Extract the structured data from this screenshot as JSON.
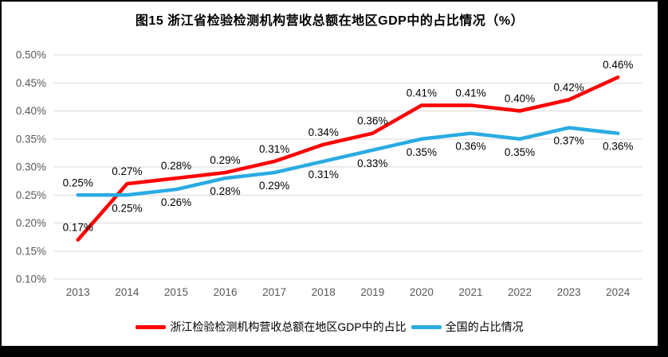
{
  "chart_data": {
    "type": "line",
    "title": "图15  浙江省检验检测机构营收总额在地区GDP中的占比情况（%）",
    "categories": [
      "2013",
      "2014",
      "2015",
      "2016",
      "2017",
      "2018",
      "2019",
      "2020",
      "2021",
      "2022",
      "2023",
      "2024"
    ],
    "series": [
      {
        "name": "浙江检验检测机构营收总额在地区GDP中的占比",
        "color": "#FF0000",
        "values": [
          0.17,
          0.27,
          0.28,
          0.29,
          0.31,
          0.34,
          0.36,
          0.41,
          0.41,
          0.4,
          0.42,
          0.46
        ],
        "labels": [
          "0.17%",
          "0.27%",
          "0.28%",
          "0.29%",
          "0.31%",
          "0.34%",
          "0.36%",
          "0.41%",
          "0.41%",
          "0.40%",
          "0.42%",
          "0.46%"
        ],
        "label_position": "above",
        "label_position_overrides": {}
      },
      {
        "name": "全国的占比情况",
        "color": "#29ABE2",
        "values": [
          0.25,
          0.25,
          0.26,
          0.28,
          0.29,
          0.31,
          0.33,
          0.35,
          0.36,
          0.35,
          0.37,
          0.36
        ],
        "labels": [
          "0.25%",
          "0.25%",
          "0.26%",
          "0.28%",
          "0.29%",
          "0.31%",
          "0.33%",
          "0.35%",
          "0.36%",
          "0.35%",
          "0.37%",
          "0.36%"
        ],
        "label_position": "below",
        "label_position_overrides": {
          "0": "above"
        }
      }
    ],
    "ylim": [
      0.1,
      0.5
    ],
    "ytick_step": 0.05,
    "ytick_labels": [
      "0.10%",
      "0.15%",
      "0.20%",
      "0.25%",
      "0.30%",
      "0.35%",
      "0.40%",
      "0.45%",
      "0.50%"
    ],
    "grid": true,
    "legend_position": "bottom",
    "colors": {
      "gridline": "#D9D9D9",
      "axis_text": "#595959",
      "data_label": "#000000",
      "title_text": "#000000"
    }
  }
}
